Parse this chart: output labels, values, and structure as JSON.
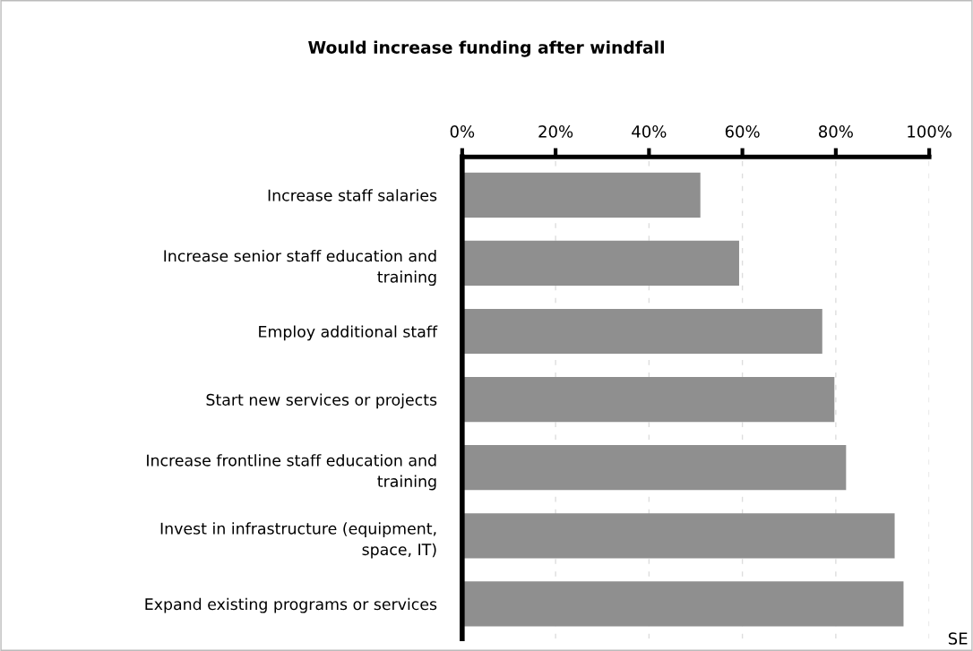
{
  "chart_data": {
    "type": "bar",
    "orientation": "horizontal",
    "title": "Would increase funding after windfall",
    "categories": [
      "Increase staff salaries",
      "Increase senior staff education and\ntraining",
      "Employ additional staff",
      "Start new services or projects",
      "Increase frontline staff education and\ntraining",
      "Invest in infrastructure (equipment,\nspace, IT)",
      "Expand existing programs or services"
    ],
    "values": [
      51,
      59.3,
      77.1,
      79.7,
      82.2,
      92.6,
      94.5
    ],
    "color": "#8f8f8f",
    "xlim": [
      0,
      100
    ],
    "xticks": [
      {
        "value": 0,
        "label": "0%"
      },
      {
        "value": 20,
        "label": "20%"
      },
      {
        "value": 40,
        "label": "40%"
      },
      {
        "value": 60,
        "label": "60%"
      },
      {
        "value": 80,
        "label": "80%"
      },
      {
        "value": 100,
        "label": "100%"
      }
    ],
    "grid": "x",
    "annotations": [
      "SE"
    ]
  }
}
